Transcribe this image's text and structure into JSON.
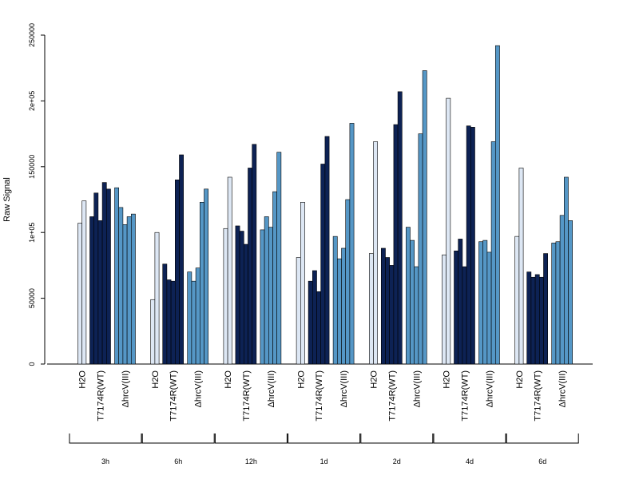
{
  "chart_data": {
    "type": "bar",
    "ylabel": "Raw Signal",
    "ylim": [
      0,
      250000
    ],
    "y_ticks": [
      0,
      50000,
      100000,
      150000,
      200000,
      250000
    ],
    "y_tick_labels": [
      "0",
      "50000",
      "1e+05",
      "150000",
      "2e+05",
      "250000"
    ],
    "condition_labels": [
      "H2O",
      "T7174R(WT)",
      "ΔhrcV(III)"
    ],
    "groups": [
      {
        "time": "3h",
        "conditions": [
          {
            "label": "H2O",
            "values": [
              107000,
              124000
            ]
          },
          {
            "label": "T7174R(WT)",
            "values": [
              112000,
              130000,
              109000,
              138000,
              133000
            ]
          },
          {
            "label": "ΔhrcV(III)",
            "values": [
              134000,
              119000,
              106000,
              112000,
              114000
            ]
          }
        ]
      },
      {
        "time": "6h",
        "conditions": [
          {
            "label": "H2O",
            "values": [
              49000,
              100000
            ]
          },
          {
            "label": "T7174R(WT)",
            "values": [
              76000,
              64000,
              63000,
              140000,
              159000
            ]
          },
          {
            "label": "ΔhrcV(III)",
            "values": [
              70000,
              63000,
              73000,
              123000,
              133000
            ]
          }
        ]
      },
      {
        "time": "12h",
        "conditions": [
          {
            "label": "H2O",
            "values": [
              103000,
              142000
            ]
          },
          {
            "label": "T7174R(WT)",
            "values": [
              105000,
              101000,
              91000,
              149000,
              167000
            ]
          },
          {
            "label": "ΔhrcV(III)",
            "values": [
              102000,
              112000,
              104000,
              131000,
              161000
            ]
          }
        ]
      },
      {
        "time": "1d",
        "conditions": [
          {
            "label": "H2O",
            "values": [
              81000,
              123000
            ]
          },
          {
            "label": "T7174R(WT)",
            "values": [
              63000,
              71000,
              55000,
              152000,
              173000
            ]
          },
          {
            "label": "ΔhrcV(III)",
            "values": [
              97000,
              80000,
              88000,
              125000,
              183000
            ]
          }
        ]
      },
      {
        "time": "2d",
        "conditions": [
          {
            "label": "H2O",
            "values": [
              84000,
              169000
            ]
          },
          {
            "label": "T7174R(WT)",
            "values": [
              88000,
              81000,
              75000,
              182000,
              207000
            ]
          },
          {
            "label": "ΔhrcV(III)",
            "values": [
              104000,
              94000,
              74000,
              175000,
              223000
            ]
          }
        ]
      },
      {
        "time": "4d",
        "conditions": [
          {
            "label": "H2O",
            "values": [
              83000,
              202000
            ]
          },
          {
            "label": "T7174R(WT)",
            "values": [
              86000,
              95000,
              74000,
              181000,
              180000
            ]
          },
          {
            "label": "ΔhrcV(III)",
            "values": [
              93000,
              94000,
              85000,
              169000,
              242000
            ]
          }
        ]
      },
      {
        "time": "6d",
        "conditions": [
          {
            "label": "H2O",
            "values": [
              97000,
              149000
            ]
          },
          {
            "label": "T7174R(WT)",
            "values": [
              70000,
              66000,
              68000,
              66000,
              84000
            ]
          },
          {
            "label": "ΔhrcV(III)",
            "values": [
              92000,
              93000,
              113000,
              142000,
              109000
            ]
          }
        ]
      }
    ],
    "colors": {
      "H2O": "#dde7f4",
      "T7174R(WT)": "#0d2254",
      "ΔhrcV(III)": "#5597c6"
    },
    "grid": false,
    "legend": "none"
  }
}
